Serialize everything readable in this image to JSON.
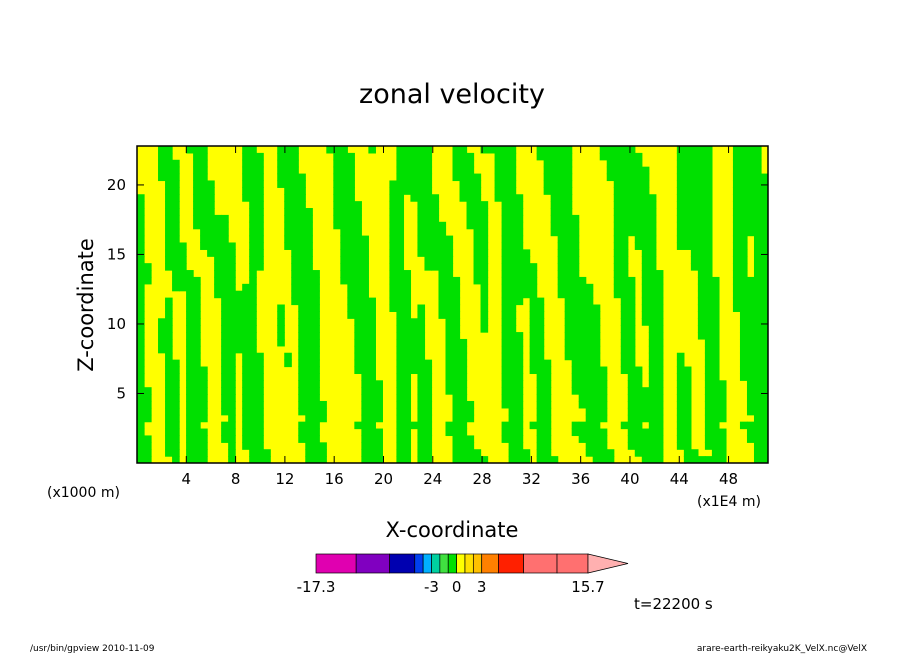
{
  "chart_data": {
    "type": "heatmap",
    "title": "zonal velocity",
    "xlabel": "X-coordinate",
    "ylabel": "Z-coordinate",
    "x_unit_left": "(x1000 m)",
    "x_unit_right": "(x1E4 m)",
    "x_ticks": [
      4,
      8,
      12,
      16,
      20,
      24,
      28,
      32,
      36,
      40,
      44,
      48
    ],
    "x_tick_labels": [
      "4",
      "8",
      "12",
      "16",
      "20",
      "24",
      "28",
      "32",
      "36",
      "40",
      "44",
      "48"
    ],
    "xlim": [
      0,
      51.2
    ],
    "y_ticks": [
      5,
      10,
      15,
      20
    ],
    "y_tick_labels": [
      "5",
      "10",
      "15",
      "20"
    ],
    "ylim": [
      0,
      22.8
    ],
    "colors": {
      "positive": "#ffff00",
      "negative": "#00e000",
      "contour": "#1a1a6e"
    },
    "colorbar": {
      "min_label": "-17.3",
      "max_label": "15.7",
      "labels": [
        "-17.3",
        "-3",
        "0",
        "3",
        "15.7"
      ],
      "label_values": [
        -17.3,
        -3,
        0,
        3,
        15.7
      ],
      "bins": [
        {
          "from": -17.3,
          "to": -12,
          "color": "#e000b0"
        },
        {
          "from": -12,
          "to": -8,
          "color": "#8000c0"
        },
        {
          "from": -8,
          "to": -5,
          "color": "#0000b0"
        },
        {
          "from": -5,
          "to": -4,
          "color": "#0040f0"
        },
        {
          "from": -4,
          "to": -3,
          "color": "#00b0ff"
        },
        {
          "from": -3,
          "to": -2,
          "color": "#00d0a0"
        },
        {
          "from": -2,
          "to": -1,
          "color": "#40e040"
        },
        {
          "from": -1,
          "to": 0,
          "color": "#00e000"
        },
        {
          "from": 0,
          "to": 1,
          "color": "#ffff00"
        },
        {
          "from": 1,
          "to": 2,
          "color": "#ffe000"
        },
        {
          "from": 2,
          "to": 3,
          "color": "#ffc000"
        },
        {
          "from": 3,
          "to": 5,
          "color": "#ff8000"
        },
        {
          "from": 5,
          "to": 8,
          "color": "#ff2000"
        },
        {
          "from": 8,
          "to": 12,
          "color": "#ff7070"
        },
        {
          "from": 12,
          "to": 15.7,
          "color": "#ffb0b0"
        }
      ]
    },
    "time_label": "t=22200 s"
  },
  "footer": {
    "left": "/usr/bin/gpview   2010-11-09",
    "right": "arare-earth-reikyaku2K_VelX.nc@VelX"
  }
}
